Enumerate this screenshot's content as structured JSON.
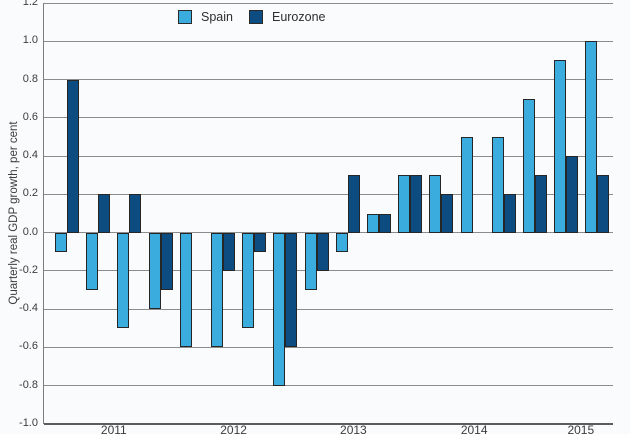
{
  "chart_data": {
    "type": "bar",
    "title": "",
    "ylabel": "Quarterly real GDP growth, per cent",
    "xlabel": "",
    "ylim": [
      -1.0,
      1.2
    ],
    "yticks": [
      1.2,
      1.0,
      0.8,
      0.6,
      0.4,
      0.2,
      0.0,
      -0.2,
      -0.4,
      -0.6,
      -0.8,
      -1.0
    ],
    "ytick_labels": [
      "1.2",
      "1.0",
      "0.8",
      "0.6",
      "0.4",
      "0.2",
      "0.0",
      "-0.2",
      "-0.4",
      "-0.6",
      "-0.8",
      "-1.0"
    ],
    "grid": true,
    "legend_position": "top-center-inside",
    "years": [
      "2011",
      "2012",
      "2013",
      "2014",
      "2015"
    ],
    "quarters_per_year": [
      4,
      4,
      4,
      4,
      2
    ],
    "x": [
      "2011 Q1",
      "2011 Q2",
      "2011 Q3",
      "2011 Q4",
      "2012 Q1",
      "2012 Q2",
      "2012 Q3",
      "2012 Q4",
      "2013 Q1",
      "2013 Q2",
      "2013 Q3",
      "2013 Q4",
      "2014 Q1",
      "2014 Q2",
      "2014 Q3",
      "2014 Q4",
      "2015 Q1",
      "2015 Q2"
    ],
    "series": [
      {
        "name": "Spain",
        "color": "#3AACDE",
        "values": [
          -0.1,
          -0.3,
          -0.5,
          -0.4,
          -0.6,
          -0.6,
          -0.5,
          -0.8,
          -0.3,
          -0.1,
          0.1,
          0.3,
          0.3,
          0.5,
          0.5,
          0.7,
          0.9,
          1.0
        ]
      },
      {
        "name": "Eurozone",
        "color": "#0D4C80",
        "values": [
          0.8,
          0.2,
          0.2,
          -0.3,
          0.0,
          -0.2,
          -0.1,
          -0.6,
          -0.2,
          0.3,
          0.1,
          0.3,
          0.2,
          0.0,
          0.2,
          0.3,
          0.4,
          0.3
        ]
      }
    ]
  },
  "colors": {
    "gridline": "#8C8C8C",
    "axis": "#5C5C5C",
    "bar_border": "#262626",
    "text": "#3C3C3C",
    "background": "#FAFBFC"
  }
}
